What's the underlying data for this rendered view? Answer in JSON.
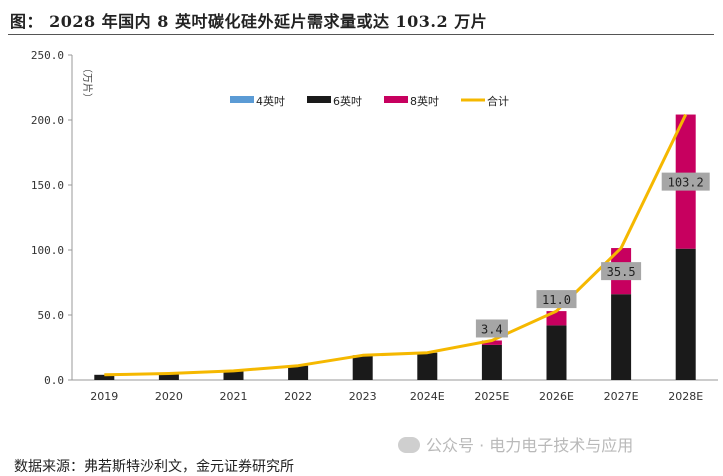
{
  "figure": {
    "title": "图：  2028 年国内 8 英吋碳化硅外延片需求量或达 103.2 万片",
    "source_prefix": "数据来源：",
    "source": "弗若斯特沙利文，金元证券研究所",
    "watermark": "公众号 · 电力电子技术与应用"
  },
  "colors": {
    "inch4": "#5b9bd5",
    "inch6": "#1a1a1a",
    "inch8": "#c7005f",
    "total": "#f5b800",
    "label_box": "#a6a6a6"
  },
  "chart_data": {
    "type": "bar",
    "stacked": true,
    "unit_label": "（万片）",
    "categories": [
      "2019",
      "2020",
      "2021",
      "2022",
      "2023",
      "2024E",
      "2025E",
      "2026E",
      "2027E",
      "2028E"
    ],
    "series": [
      {
        "name": "4英吋",
        "values": [
          0,
          0,
          0,
          0,
          0,
          0,
          0,
          0,
          0,
          0
        ]
      },
      {
        "name": "6英吋",
        "values": [
          4,
          5,
          7,
          11,
          19,
          21,
          27,
          42,
          66,
          101
        ]
      },
      {
        "name": "8英吋",
        "values": [
          0,
          0,
          0,
          0,
          0,
          0,
          3.4,
          11.0,
          35.5,
          103.2
        ]
      }
    ],
    "line": {
      "name": "合计",
      "values": [
        4,
        5,
        7,
        11,
        19,
        21,
        30.4,
        53,
        101.5,
        204.2
      ]
    },
    "data_labels": [
      "",
      "",
      "",
      "",
      "",
      "",
      "3.4",
      "11.0",
      "35.5",
      "103.2"
    ],
    "ylim": [
      0,
      250
    ],
    "yticks": [
      "0.0",
      "50.0",
      "100.0",
      "150.0",
      "200.0",
      "250.0"
    ],
    "grid": false,
    "legend_position": "top-center"
  }
}
